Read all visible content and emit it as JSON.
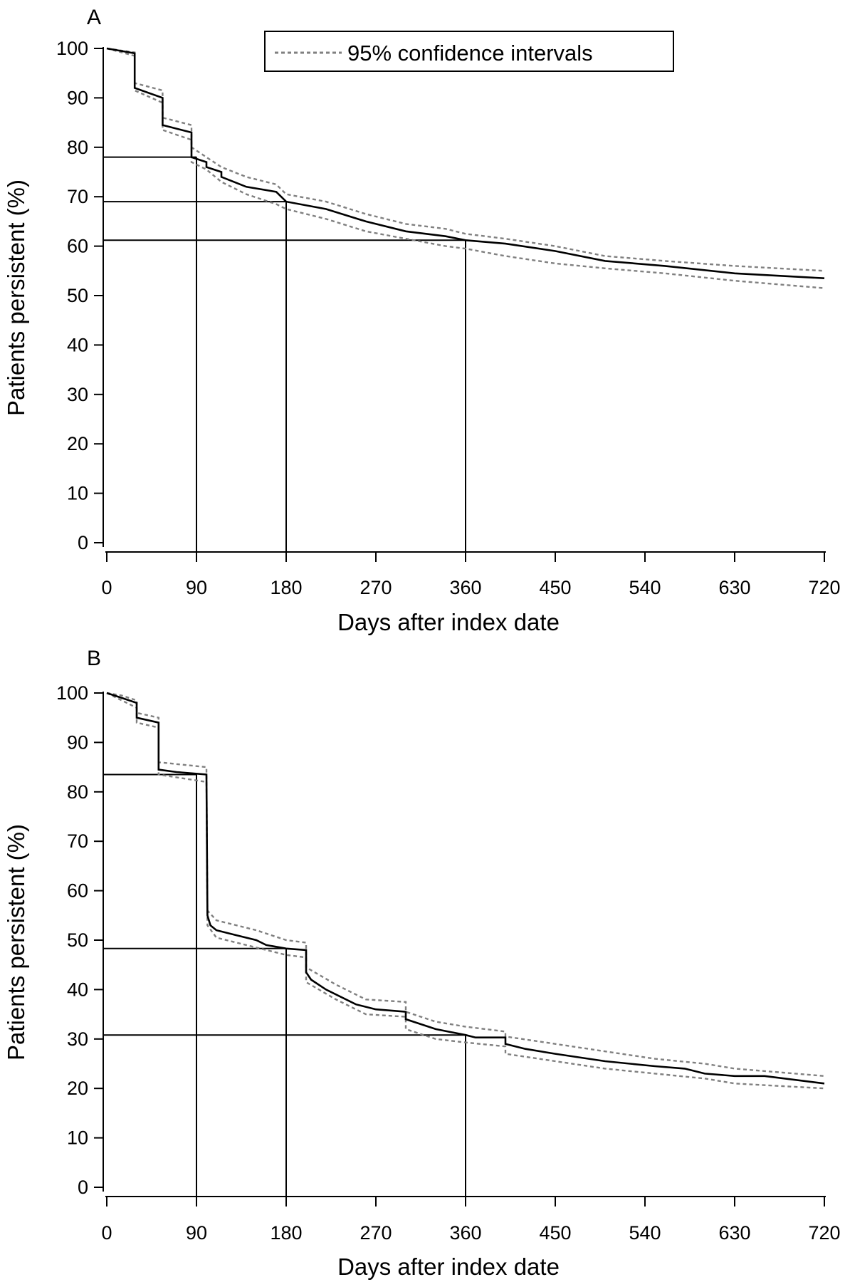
{
  "chart_data": [
    {
      "type": "line",
      "panel_label": "A",
      "title": "",
      "xlabel": "Days after index date",
      "ylabel": "Patients persistent (%)",
      "xlim": [
        0,
        720
      ],
      "ylim": [
        0,
        100
      ],
      "xticks": [
        0,
        90,
        180,
        270,
        360,
        450,
        540,
        630,
        720
      ],
      "yticks": [
        0,
        10,
        20,
        30,
        40,
        50,
        60,
        70,
        80,
        90,
        100
      ],
      "grid": false,
      "legend": {
        "position": "top-center",
        "entries": [
          "95% confidence intervals"
        ]
      },
      "series": [
        {
          "role": "estimate",
          "x": [
            0,
            28,
            28,
            56,
            56,
            85,
            85,
            100,
            100,
            115,
            115,
            140,
            170,
            180,
            220,
            260,
            300,
            340,
            360,
            400,
            450,
            500,
            560,
            630,
            720
          ],
          "values": [
            100,
            99,
            92,
            90,
            84.5,
            83,
            78,
            77,
            76,
            75,
            74,
            72,
            71,
            69,
            67.5,
            65,
            63,
            62,
            61.2,
            60.5,
            59,
            57,
            56,
            54.5,
            53.5
          ]
        },
        {
          "role": "upper_ci",
          "x": [
            0,
            28,
            28,
            56,
            56,
            85,
            85,
            100,
            115,
            140,
            170,
            180,
            220,
            260,
            300,
            340,
            360,
            400,
            450,
            500,
            560,
            630,
            720
          ],
          "values": [
            100,
            99.2,
            93,
            91.5,
            86,
            84.5,
            80,
            78,
            76,
            74,
            72.5,
            70.5,
            69,
            66.5,
            64.5,
            63.5,
            62.5,
            61.5,
            60,
            58,
            57,
            56,
            55
          ]
        },
        {
          "role": "lower_ci",
          "x": [
            0,
            28,
            28,
            56,
            56,
            85,
            85,
            100,
            115,
            140,
            170,
            180,
            220,
            260,
            300,
            340,
            360,
            400,
            450,
            500,
            560,
            630,
            720
          ],
          "values": [
            100,
            98.5,
            91.5,
            89,
            83.5,
            81.5,
            77,
            75.5,
            73,
            70.5,
            68.5,
            67.5,
            65.5,
            63,
            61.5,
            60,
            59.5,
            58,
            56.5,
            55.5,
            54.5,
            53,
            51.5
          ]
        }
      ],
      "reference_points": [
        {
          "x": 90,
          "y": 78
        },
        {
          "x": 180,
          "y": 69
        },
        {
          "x": 360,
          "y": 61.2
        }
      ]
    },
    {
      "type": "line",
      "panel_label": "B",
      "title": "",
      "xlabel": "Days after index date",
      "ylabel": "Patients persistent (%)",
      "xlim": [
        0,
        720
      ],
      "ylim": [
        0,
        100
      ],
      "xticks": [
        0,
        90,
        180,
        270,
        360,
        450,
        540,
        630,
        720
      ],
      "yticks": [
        0,
        10,
        20,
        30,
        40,
        50,
        60,
        70,
        80,
        90,
        100
      ],
      "grid": false,
      "series": [
        {
          "role": "estimate",
          "x": [
            0,
            15,
            30,
            30,
            52,
            52,
            70,
            100,
            100,
            101,
            104,
            110,
            130,
            150,
            160,
            180,
            200,
            200,
            205,
            220,
            250,
            270,
            300,
            300,
            330,
            360,
            370,
            400,
            400,
            420,
            450,
            500,
            550,
            580,
            600,
            630,
            660,
            720
          ],
          "values": [
            100,
            99,
            98,
            95,
            94,
            84.5,
            84,
            83.5,
            83.5,
            55,
            53,
            52,
            51,
            50,
            49,
            48.3,
            48,
            43.5,
            42,
            40,
            37,
            36,
            35.5,
            34,
            32,
            30.8,
            30.3,
            30.3,
            29,
            28,
            27,
            25.5,
            24.5,
            24,
            23,
            22.5,
            22.5,
            21
          ]
        },
        {
          "role": "upper_ci",
          "x": [
            0,
            15,
            30,
            30,
            52,
            52,
            100,
            100,
            101,
            110,
            150,
            180,
            200,
            200,
            230,
            260,
            300,
            300,
            330,
            360,
            400,
            400,
            450,
            500,
            550,
            600,
            630,
            720
          ],
          "values": [
            100,
            99.5,
            98.5,
            96,
            95,
            86,
            85,
            85,
            56,
            54,
            52,
            50,
            49.5,
            44.5,
            41,
            38,
            37.5,
            35.5,
            33.5,
            32.5,
            31.5,
            30.5,
            29,
            27.5,
            26,
            25,
            24,
            22.5
          ]
        },
        {
          "role": "lower_ci",
          "x": [
            0,
            15,
            30,
            30,
            52,
            52,
            100,
            100,
            101,
            110,
            150,
            180,
            200,
            200,
            230,
            260,
            300,
            300,
            330,
            360,
            400,
            400,
            450,
            500,
            550,
            600,
            630,
            720
          ],
          "values": [
            100,
            98.5,
            97,
            94,
            93,
            83.5,
            82,
            82,
            53,
            50.5,
            48.5,
            47,
            46.5,
            41.5,
            38,
            35,
            34.5,
            32,
            30,
            29.3,
            28.5,
            27,
            25.5,
            24,
            23,
            22,
            21,
            20
          ]
        }
      ],
      "reference_points": [
        {
          "x": 90,
          "y": 83.5
        },
        {
          "x": 180,
          "y": 48.3
        },
        {
          "x": 360,
          "y": 30.8
        }
      ]
    }
  ]
}
